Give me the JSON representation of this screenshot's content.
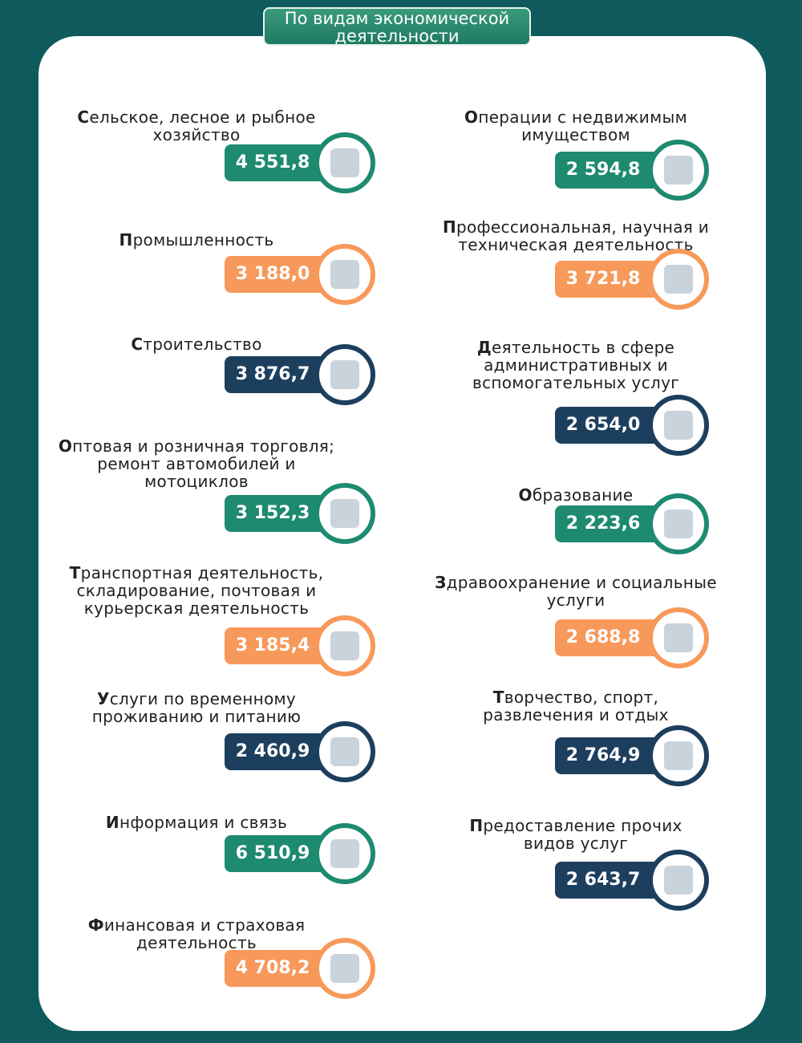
{
  "header": {
    "title": "По видам экономической\nдеятельности"
  },
  "items_left": [
    {
      "label": "Сельское, лесное и рыбное\nхозяйство",
      "value": "4 551,8",
      "color": "#1e8a70"
    },
    {
      "label": "Промышленность",
      "value": "3 188,0",
      "color": "#f7995a"
    },
    {
      "label": "Строительство",
      "value": "3 876,7",
      "color": "#1d3f5e"
    },
    {
      "label": "Оптовая и розничная торговля;\nремонт автомобилей и\nмотоциклов",
      "value": "3 152,3",
      "color": "#1e8a70"
    },
    {
      "label": "Транспортная деятельность,\nскладирование, почтовая и\nкурьерская деятельность",
      "value": "3 185,4",
      "color": "#f7995a"
    },
    {
      "label": "Услуги по временному\nпроживанию и питанию",
      "value": "2 460,9",
      "color": "#1d3f5e"
    },
    {
      "label": "Информация и связь",
      "value": "6 510,9",
      "color": "#1e8a70"
    },
    {
      "label": "Финансовая  и страховая\nдеятельность",
      "value": "4 708,2",
      "color": "#f7995a"
    }
  ],
  "items_right": [
    {
      "label": "Операции с недвижимым\nимуществом",
      "value": "2 594,8",
      "color": "#1e8a70"
    },
    {
      "label": "Профессиональная, научная и\nтехническая деятельность",
      "value": "3 721,8",
      "color": "#f7995a"
    },
    {
      "label": "Деятельность в сфере\nадминистративных и\nвспомогательных услуг",
      "value": "2 654,0",
      "color": "#1d3f5e"
    },
    {
      "label": "Образование",
      "value": "2 223,6",
      "color": "#1e8a70"
    },
    {
      "label": "Здравоохранение и социальные\nуслуги",
      "value": "2 688,8",
      "color": "#f7995a"
    },
    {
      "label": "Творчество, спорт,\nразвлечения и отдых",
      "value": "2 764,9",
      "color": "#1d3f5e"
    },
    {
      "label": "Предоставление прочих\nвидов услуг",
      "value": "2 643,7",
      "color": "#1d3f5e"
    }
  ]
}
